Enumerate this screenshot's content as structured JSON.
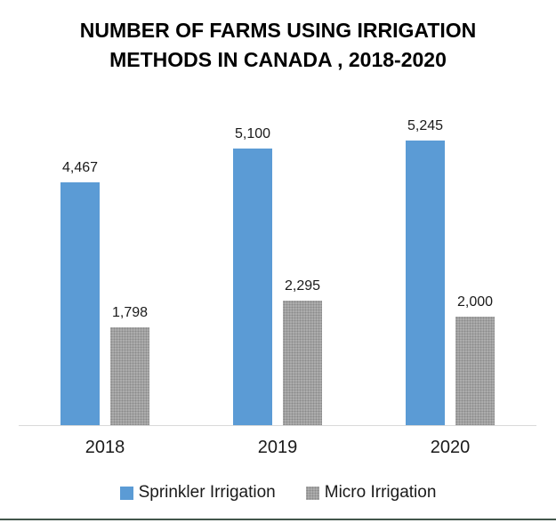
{
  "chart_data": {
    "type": "bar",
    "title": "NUMBER OF FARMS USING IRRIGATION METHODS IN CANADA , 2018-2020",
    "title_lines": [
      "NUMBER OF FARMS USING IRRIGATION",
      "METHODS IN CANADA , 2018-2020"
    ],
    "categories": [
      "2018",
      "2019",
      "2020"
    ],
    "series": [
      {
        "name": "Sprinkler Irrigation",
        "color": "#5B9BD5",
        "pattern": "solid",
        "values": [
          4467,
          5100,
          5245
        ],
        "labels": [
          "4,467",
          "5,100",
          "5,245"
        ]
      },
      {
        "name": "Micro Irrigation",
        "color": "#ACACAC",
        "pattern": "stipple",
        "values": [
          1798,
          2295,
          2000
        ],
        "labels": [
          "1,798",
          "2,295",
          "2,000"
        ]
      }
    ],
    "ylim": [
      0,
      5245
    ],
    "grid": false,
    "data_labels": true,
    "legend_position": "bottom"
  },
  "colors": {
    "axis_line": "#D9D9D9",
    "bottom_border": "#42564B",
    "title_text": "#000000",
    "label_text": "#1A1A1A",
    "background": "#FFFFFF"
  }
}
